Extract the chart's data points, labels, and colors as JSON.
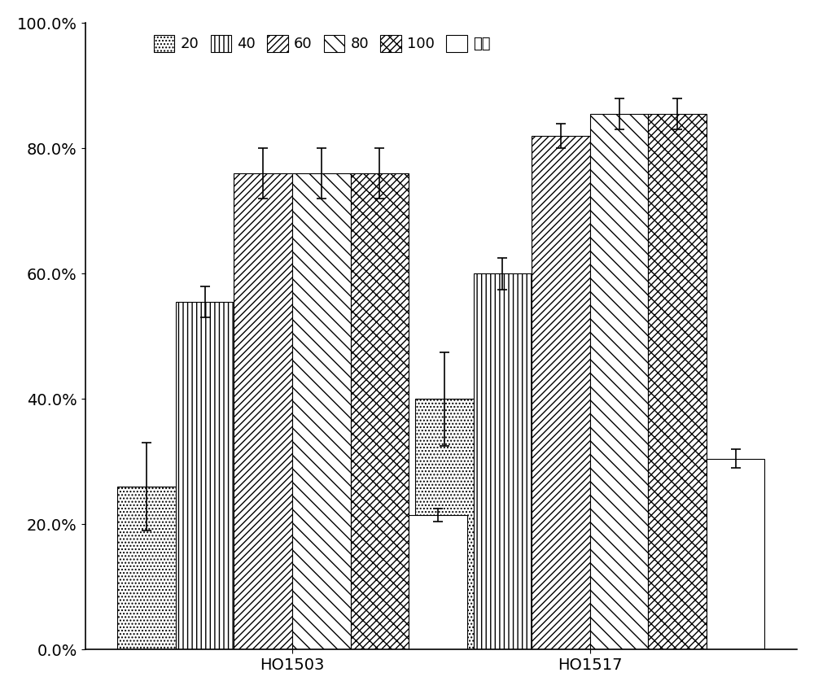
{
  "groups": [
    "HO1503",
    "HO1517"
  ],
  "series_labels": [
    "20",
    "40",
    "60",
    "80",
    "100",
    "蜜蜂"
  ],
  "values": {
    "HO1503": [
      0.26,
      0.555,
      0.76,
      0.76,
      0.76,
      0.215
    ],
    "HO1517": [
      0.4,
      0.6,
      0.82,
      0.855,
      0.855,
      0.305
    ]
  },
  "errors": {
    "HO1503": [
      0.07,
      0.025,
      0.04,
      0.04,
      0.04,
      0.01
    ],
    "HO1517": [
      0.075,
      0.025,
      0.02,
      0.025,
      0.025,
      0.015
    ]
  },
  "ylim": [
    0.0,
    1.0
  ],
  "yticks": [
    0.0,
    0.2,
    0.4,
    0.6,
    0.8,
    1.0
  ],
  "yticklabels": [
    "0.0%",
    "20.0%",
    "40.0%",
    "60.0%",
    "80.0%",
    "100.0%"
  ],
  "hatches": [
    "....",
    "|||",
    "////",
    "\\\\\\\\",
    "\\\\\\\\////",
    "---"
  ],
  "bar_width": 0.09,
  "group_centers": [
    0.32,
    0.78
  ],
  "xlim": [
    0.0,
    1.1
  ],
  "background_color": "#ffffff",
  "bar_edge_color": "#000000",
  "error_color": "#000000",
  "fontsize_ticks": 14,
  "fontsize_labels": 14,
  "fontsize_legend": 13
}
